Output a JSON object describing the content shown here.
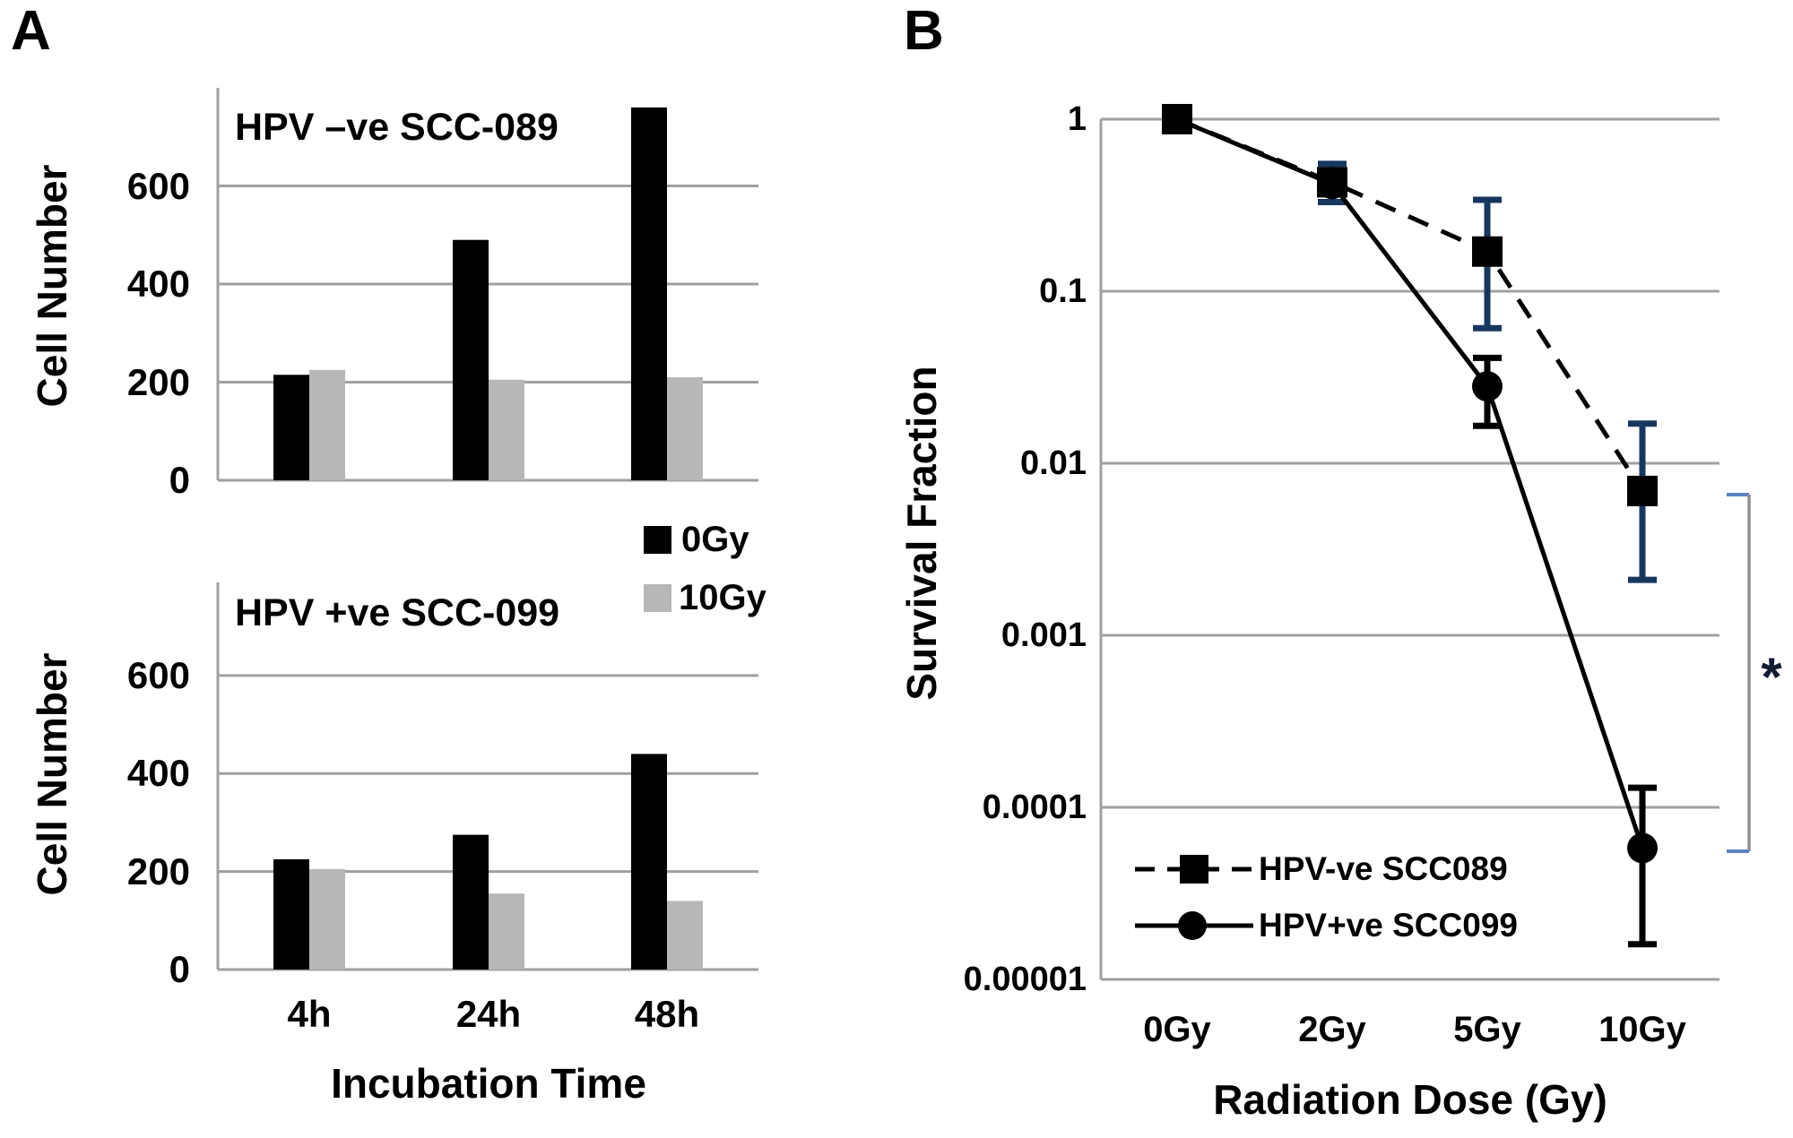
{
  "figure": {
    "panel_a_letter": "A",
    "panel_b_letter": "B"
  },
  "colors": {
    "bar_black": "#000000",
    "bar_gray": "#b7b7b7",
    "grid": "#a0a0a0",
    "navy_error": "#17375e",
    "black_error": "#000000",
    "bracket_hook": "#5b84c0",
    "bracket_line": "#8f8f8f",
    "text": "#000000"
  },
  "significance": {
    "asterisk": "*"
  },
  "chart_data": [
    {
      "id": "a_top",
      "type": "bar",
      "title": "HPV –ve SCC-089",
      "xlabel": "",
      "ylabel": "Cell Number",
      "categories": [
        "4h",
        "24h",
        "48h"
      ],
      "series": [
        {
          "name": "0Gy",
          "color": "#000000",
          "values": [
            215,
            490,
            760
          ]
        },
        {
          "name": "10Gy",
          "color": "#b7b7b7",
          "values": [
            225,
            205,
            210
          ]
        }
      ],
      "ylim": [
        0,
        800
      ],
      "yticks": [
        0,
        200,
        400,
        600
      ],
      "grid": true,
      "legend_position": "below-right"
    },
    {
      "id": "a_bottom",
      "type": "bar",
      "title": "HPV +ve SCC-099",
      "xlabel": "Incubation Time",
      "ylabel": "Cell Number",
      "categories": [
        "4h",
        "24h",
        "48h"
      ],
      "series": [
        {
          "name": "0Gy",
          "color": "#000000",
          "values": [
            225,
            275,
            440
          ]
        },
        {
          "name": "10Gy",
          "color": "#b7b7b7",
          "values": [
            205,
            155,
            140
          ]
        }
      ],
      "ylim": [
        0,
        790
      ],
      "yticks": [
        0,
        200,
        400,
        600
      ],
      "grid": true
    },
    {
      "id": "b",
      "type": "line",
      "title": "",
      "xlabel": "Radiation Dose (Gy)",
      "ylabel": "Survival Fraction",
      "categories": [
        "0Gy",
        "2Gy",
        "5Gy",
        "10Gy"
      ],
      "yscale": "log",
      "ylim": [
        1e-05,
        1
      ],
      "ytick_labels": [
        "1",
        "0.1",
        "0.01",
        "0.001",
        "0.0001",
        "0.00001"
      ],
      "grid": true,
      "legend_position": "inside-bottom-left",
      "series": [
        {
          "name": "HPV-ve SCC089",
          "marker": "square",
          "line_style": "dashed",
          "color": "#000000",
          "error_color": "#17375e",
          "values": [
            1.0,
            0.43,
            0.17,
            0.0069
          ],
          "err_hi": [
            null,
            0.55,
            0.34,
            0.017
          ],
          "err_lo": [
            null,
            0.33,
            0.061,
            0.0021
          ]
        },
        {
          "name": "HPV+ve SCC099",
          "marker": "circle",
          "line_style": "solid",
          "color": "#000000",
          "error_color": "#000000",
          "values": [
            1.0,
            0.42,
            0.028,
            5.8e-05
          ],
          "err_hi": [
            null,
            null,
            0.041,
            0.00013
          ],
          "err_lo": [
            null,
            null,
            0.0165,
            1.6e-05
          ]
        }
      ],
      "annotation": "* (significant difference bracket, 10Gy)"
    }
  ]
}
